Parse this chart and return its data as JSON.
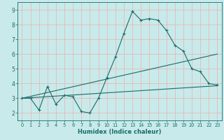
{
  "title": "",
  "xlabel": "Humidex (Indice chaleur)",
  "xlim": [
    -0.5,
    23.5
  ],
  "ylim": [
    1.5,
    9.5
  ],
  "yticks": [
    2,
    3,
    4,
    5,
    6,
    7,
    8,
    9
  ],
  "xticks": [
    0,
    1,
    2,
    3,
    4,
    5,
    6,
    7,
    8,
    9,
    10,
    11,
    12,
    13,
    14,
    15,
    16,
    17,
    18,
    19,
    20,
    21,
    22,
    23
  ],
  "bg_color": "#c8eaea",
  "grid_color": "#e8b8b8",
  "line_color": "#1a6b6b",
  "line1_x": [
    0,
    1,
    2,
    3,
    4,
    5,
    6,
    7,
    8,
    9,
    10,
    11,
    12,
    13,
    14,
    15,
    16,
    17,
    18,
    19,
    20,
    21,
    22,
    23
  ],
  "line1_y": [
    3.0,
    3.0,
    2.2,
    3.8,
    2.6,
    3.2,
    3.1,
    2.1,
    2.0,
    3.0,
    4.4,
    5.8,
    7.4,
    8.9,
    8.3,
    8.4,
    8.3,
    7.6,
    6.6,
    6.2,
    5.0,
    4.8,
    4.0,
    3.9
  ],
  "line2_x": [
    0,
    23
  ],
  "line2_y": [
    3.0,
    3.85
  ],
  "line3_x": [
    0,
    23
  ],
  "line3_y": [
    3.0,
    6.0
  ]
}
